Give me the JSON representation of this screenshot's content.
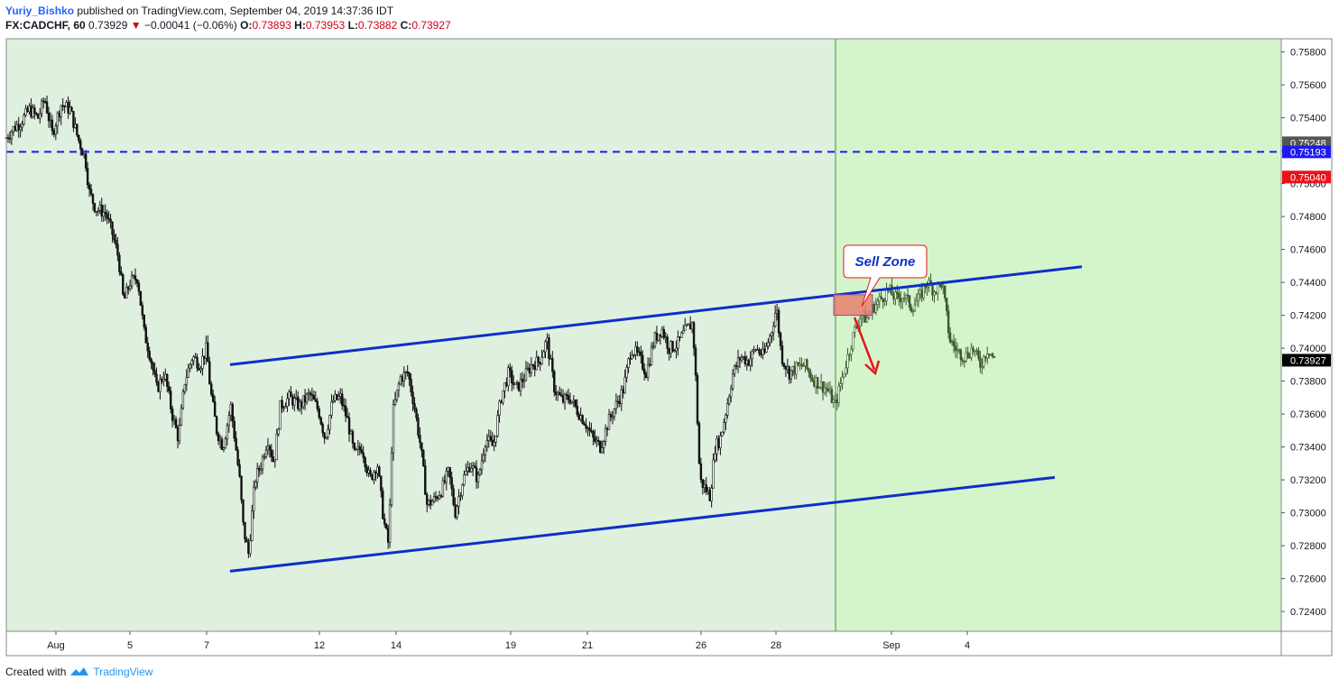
{
  "header": {
    "author": "Yuriy_Bishko",
    "published": "published on TradingView.com, September 04, 2019 14:37:36 IDT",
    "symbol": "FX:CADCHF, 60",
    "last": "0.73929",
    "change": "−0.00041 (−0.06%)",
    "o_label": "O:",
    "o": "0.73893",
    "h_label": "H:",
    "h": "0.73953",
    "l_label": "L:",
    "l": "0.73882",
    "c_label": "C:",
    "c": "0.73927"
  },
  "footer": {
    "created": "Created with",
    "brand": "TradingView"
  },
  "colors": {
    "bg_left": "#dff0de",
    "bg_right": "#d4f5cc",
    "channel": "#0d2fc7",
    "dashed": "#1b1bf0",
    "sell_zone": "#e8806f",
    "arrow": "#e8131b",
    "callout_border": "#e8131b",
    "callout_text": "#0d2fc7"
  },
  "chart_data": {
    "type": "candlestick",
    "title": "",
    "xlabel": "",
    "ylabel": "",
    "ylim": [
      0.7228,
      0.7588
    ],
    "x_ticks": [
      "Aug",
      "5",
      "7",
      "12",
      "14",
      "19",
      "21",
      "26",
      "28",
      "Sep",
      "4"
    ],
    "y_ticks": [
      "0.75800",
      "0.75600",
      "0.75400",
      "0.75200",
      "0.75000",
      "0.74800",
      "0.74600",
      "0.74400",
      "0.74200",
      "0.74000",
      "0.73800",
      "0.73600",
      "0.73400",
      "0.73200",
      "0.73000",
      "0.72800",
      "0.72600",
      "0.72400"
    ],
    "price_labels": [
      {
        "value": "0.75248",
        "color": "#555555"
      },
      {
        "value": "0.75193",
        "color": "#1b1bf0"
      },
      {
        "value": "0.75040",
        "color": "#e8131b"
      },
      {
        "value": "0.73927",
        "color": "#000000"
      }
    ],
    "horizontal_line": 0.75193,
    "annotation": "Sell Zone",
    "price_path": [
      [
        0.0,
        0.7528
      ],
      [
        0.005,
        0.7533
      ],
      [
        0.012,
        0.7538
      ],
      [
        0.018,
        0.7545
      ],
      [
        0.025,
        0.754
      ],
      [
        0.03,
        0.7552
      ],
      [
        0.036,
        0.753
      ],
      [
        0.043,
        0.7548
      ],
      [
        0.05,
        0.7545
      ],
      [
        0.056,
        0.7528
      ],
      [
        0.062,
        0.7515
      ],
      [
        0.065,
        0.7495
      ],
      [
        0.07,
        0.7485
      ],
      [
        0.078,
        0.7482
      ],
      [
        0.083,
        0.747
      ],
      [
        0.088,
        0.7455
      ],
      [
        0.092,
        0.7428
      ],
      [
        0.097,
        0.744
      ],
      [
        0.103,
        0.7443
      ],
      [
        0.108,
        0.741
      ],
      [
        0.113,
        0.7395
      ],
      [
        0.118,
        0.7375
      ],
      [
        0.124,
        0.7385
      ],
      [
        0.13,
        0.736
      ],
      [
        0.135,
        0.7345
      ],
      [
        0.14,
        0.738
      ],
      [
        0.146,
        0.7395
      ],
      [
        0.152,
        0.739
      ],
      [
        0.157,
        0.74
      ],
      [
        0.16,
        0.7375
      ],
      [
        0.165,
        0.735
      ],
      [
        0.17,
        0.734
      ],
      [
        0.176,
        0.7365
      ],
      [
        0.18,
        0.734
      ],
      [
        0.183,
        0.732
      ],
      [
        0.186,
        0.729
      ],
      [
        0.19,
        0.7275
      ],
      [
        0.195,
        0.732
      ],
      [
        0.2,
        0.733
      ],
      [
        0.205,
        0.7345
      ],
      [
        0.21,
        0.733
      ],
      [
        0.215,
        0.7365
      ],
      [
        0.222,
        0.737
      ],
      [
        0.23,
        0.7365
      ],
      [
        0.238,
        0.7372
      ],
      [
        0.245,
        0.7362
      ],
      [
        0.25,
        0.7345
      ],
      [
        0.256,
        0.7368
      ],
      [
        0.262,
        0.737
      ],
      [
        0.268,
        0.7355
      ],
      [
        0.273,
        0.7335
      ],
      [
        0.279,
        0.734
      ],
      [
        0.285,
        0.732
      ],
      [
        0.291,
        0.733
      ],
      [
        0.296,
        0.7295
      ],
      [
        0.3,
        0.728
      ],
      [
        0.303,
        0.736
      ],
      [
        0.309,
        0.7382
      ],
      [
        0.315,
        0.7385
      ],
      [
        0.32,
        0.7365
      ],
      [
        0.325,
        0.734
      ],
      [
        0.33,
        0.7305
      ],
      [
        0.336,
        0.7308
      ],
      [
        0.342,
        0.7315
      ],
      [
        0.347,
        0.7325
      ],
      [
        0.352,
        0.73
      ],
      [
        0.358,
        0.732
      ],
      [
        0.364,
        0.733
      ],
      [
        0.37,
        0.732
      ],
      [
        0.376,
        0.7345
      ],
      [
        0.382,
        0.734
      ],
      [
        0.388,
        0.737
      ],
      [
        0.394,
        0.7385
      ],
      [
        0.4,
        0.7375
      ],
      [
        0.406,
        0.7382
      ],
      [
        0.412,
        0.739
      ],
      [
        0.418,
        0.7392
      ],
      [
        0.424,
        0.7405
      ],
      [
        0.43,
        0.7375
      ],
      [
        0.436,
        0.7368
      ],
      [
        0.442,
        0.737
      ],
      [
        0.448,
        0.7362
      ],
      [
        0.454,
        0.7355
      ],
      [
        0.46,
        0.7345
      ],
      [
        0.466,
        0.734
      ],
      [
        0.472,
        0.7355
      ],
      [
        0.478,
        0.7365
      ],
      [
        0.484,
        0.7375
      ],
      [
        0.49,
        0.74
      ],
      [
        0.496,
        0.7395
      ],
      [
        0.502,
        0.7385
      ],
      [
        0.508,
        0.7405
      ],
      [
        0.514,
        0.7412
      ],
      [
        0.52,
        0.74
      ],
      [
        0.526,
        0.7402
      ],
      [
        0.532,
        0.741
      ],
      [
        0.538,
        0.7415
      ],
      [
        0.54,
        0.7395
      ],
      [
        0.544,
        0.732
      ],
      [
        0.548,
        0.7315
      ],
      [
        0.552,
        0.731
      ],
      [
        0.556,
        0.734
      ],
      [
        0.56,
        0.7345
      ],
      [
        0.564,
        0.736
      ],
      [
        0.57,
        0.7385
      ],
      [
        0.576,
        0.7395
      ],
      [
        0.582,
        0.7392
      ],
      [
        0.588,
        0.74
      ],
      [
        0.594,
        0.7395
      ],
      [
        0.6,
        0.741
      ],
      [
        0.604,
        0.7425
      ],
      [
        0.608,
        0.7395
      ],
      [
        0.614,
        0.7385
      ],
      [
        0.62,
        0.7388
      ],
      [
        0.626,
        0.739
      ],
      [
        0.632,
        0.7382
      ],
      [
        0.638,
        0.7378
      ],
      [
        0.644,
        0.7375
      ],
      [
        0.65,
        0.7365
      ],
      [
        0.655,
        0.738
      ],
      [
        0.66,
        0.7395
      ],
      [
        0.665,
        0.741
      ],
      [
        0.67,
        0.742
      ],
      [
        0.675,
        0.7418
      ],
      [
        0.68,
        0.7425
      ],
      [
        0.686,
        0.743
      ],
      [
        0.692,
        0.7435
      ],
      [
        0.698,
        0.743
      ],
      [
        0.704,
        0.7432
      ],
      [
        0.71,
        0.7425
      ],
      [
        0.716,
        0.743
      ],
      [
        0.722,
        0.744
      ],
      [
        0.728,
        0.7435
      ],
      [
        0.734,
        0.744
      ],
      [
        0.74,
        0.7405
      ],
      [
        0.746,
        0.7398
      ],
      [
        0.752,
        0.7395
      ],
      [
        0.758,
        0.74
      ],
      [
        0.764,
        0.739
      ],
      [
        0.77,
        0.74
      ],
      [
        0.775,
        0.7393
      ]
    ],
    "series": [
      {
        "values": [
          0.739,
          0.74495
        ]
      },
      {
        "values": [
          0.72645,
          0.73215
        ]
      }
    ]
  }
}
